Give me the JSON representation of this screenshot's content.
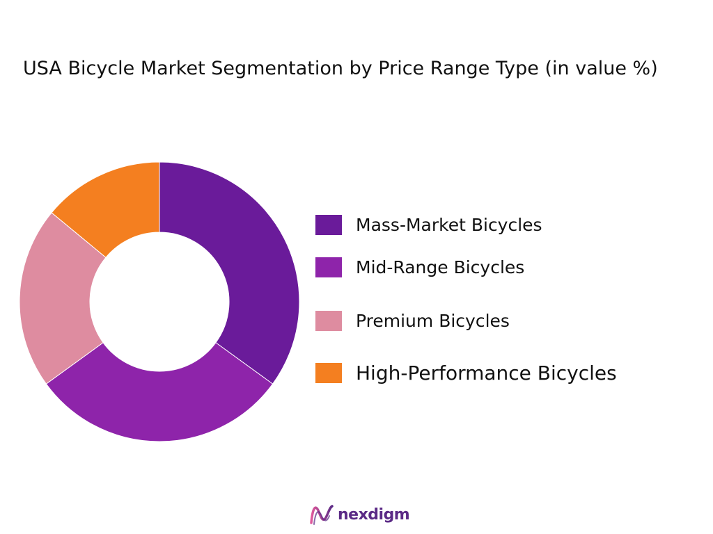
{
  "chart_data": {
    "type": "pie",
    "variant": "donut",
    "title": "USA Bicycle Market Segmentation by Price Range Type  (in value %)",
    "categories": [
      "Mass-Market Bicycles",
      "Mid-Range Bicycles",
      "Premium Bicycles",
      "High-Performance Bicycles"
    ],
    "values": [
      35,
      30,
      21,
      14
    ],
    "colors": [
      "#6a1b9a",
      "#8e24aa",
      "#de8ca0",
      "#f47f20"
    ],
    "legend_position": "right",
    "data_labels": false
  },
  "brand": {
    "name": "nexdigm",
    "logo_icon": "nexdigm-logo-icon"
  }
}
